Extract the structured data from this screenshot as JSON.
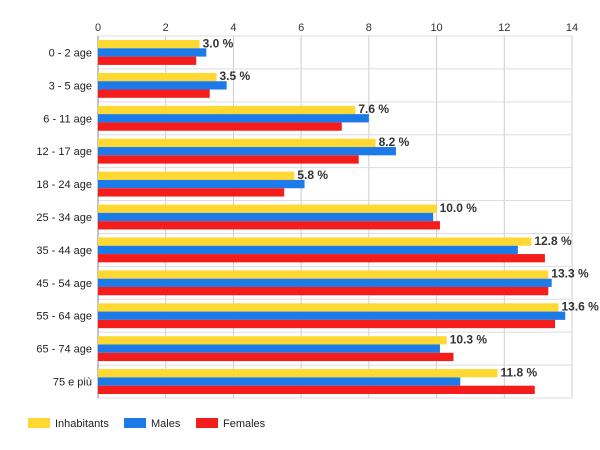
{
  "chart_data": {
    "type": "bar",
    "orientation": "horizontal",
    "categories": [
      "0 - 2 age",
      "3 - 5 age",
      "6 - 11 age",
      "12 - 17 age",
      "18 - 24 age",
      "25 - 34 age",
      "35 - 44 age",
      "45 - 54 age",
      "55 - 64 age",
      "65 - 74 age",
      "75 e più"
    ],
    "series": [
      {
        "name": "Inhabitants",
        "color": "#FFD932",
        "values": [
          3.0,
          3.5,
          7.6,
          8.2,
          5.8,
          10.0,
          12.8,
          13.3,
          13.6,
          10.3,
          11.8
        ]
      },
      {
        "name": "Males",
        "color": "#1C7BE8",
        "values": [
          3.2,
          3.8,
          8.0,
          8.8,
          6.1,
          9.9,
          12.4,
          13.4,
          13.8,
          10.1,
          10.7
        ]
      },
      {
        "name": "Females",
        "color": "#F51C1C",
        "values": [
          2.9,
          3.3,
          7.2,
          7.7,
          5.5,
          10.1,
          13.2,
          13.3,
          13.5,
          10.5,
          12.9
        ]
      }
    ],
    "data_labels": [
      "3.0 %",
      "3.5 %",
      "7.6 %",
      "8.2 %",
      "5.8 %",
      "10.0 %",
      "12.8 %",
      "13.3 %",
      "13.6 %",
      "10.3 %",
      "11.8 %"
    ],
    "x_ticks": [
      "0",
      "2",
      "4",
      "6",
      "8",
      "10",
      "12",
      "14"
    ],
    "xlim": [
      0,
      14
    ],
    "xaxis_position": "top",
    "grid": true,
    "legend_position": "bottom-left",
    "title": "",
    "xlabel": "",
    "ylabel": ""
  }
}
